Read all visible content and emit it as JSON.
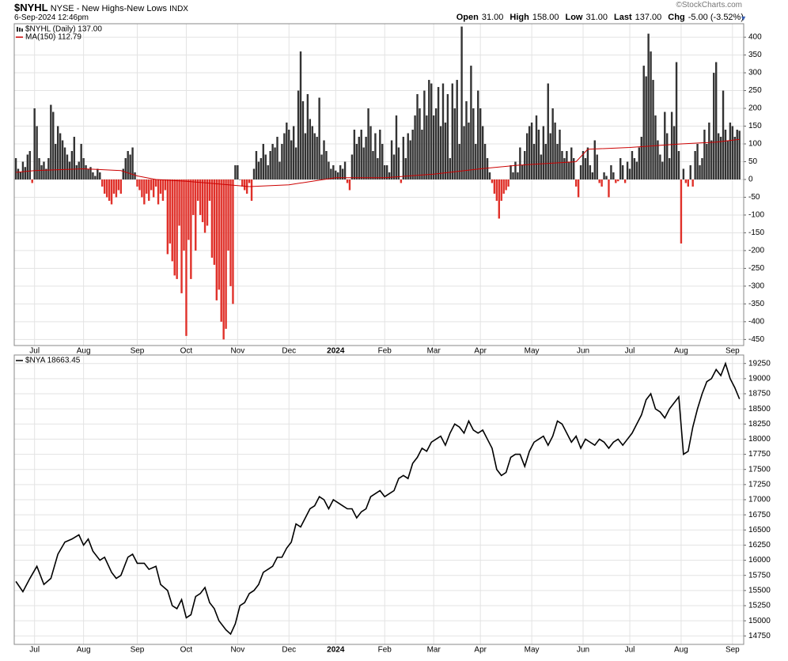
{
  "header": {
    "symbol": "$NYHL",
    "name": "NYSE - New Highs-New Lows",
    "exchange": "INDX",
    "date": "6-Sep-2024 12:46pm",
    "watermark": "©StockCharts.com",
    "quote": [
      {
        "label": "Open",
        "value": "31.00"
      },
      {
        "label": "High",
        "value": "158.00"
      },
      {
        "label": "Low",
        "value": "31.00"
      },
      {
        "label": "Last",
        "value": "137.00"
      },
      {
        "label": "Chg",
        "value": "-5.00 (-3.52%)"
      }
    ]
  },
  "chart_data": [
    {
      "type": "bar",
      "grid": true,
      "xlim": [
        -0.7,
        311.8
      ],
      "ylim": [
        -467,
        438
      ],
      "yticks": [
        400,
        350,
        300,
        250,
        200,
        150,
        100,
        50,
        0,
        -50,
        -100,
        -150,
        -200,
        -250,
        -300,
        -350,
        -400,
        -450
      ],
      "xticks": [
        {
          "value": 8,
          "label": "Jul"
        },
        {
          "value": 29,
          "label": "Aug"
        },
        {
          "value": 52,
          "label": "Sep"
        },
        {
          "value": 73,
          "label": "Oct"
        },
        {
          "value": 95,
          "label": "Nov"
        },
        {
          "value": 117,
          "label": "Dec"
        },
        {
          "value": 137,
          "label": "2024"
        },
        {
          "value": 158,
          "label": "Feb"
        },
        {
          "value": 179,
          "label": "Mar"
        },
        {
          "value": 199,
          "label": "Apr"
        },
        {
          "value": 221,
          "label": "May"
        },
        {
          "value": 243,
          "label": "Jun"
        },
        {
          "value": 263,
          "label": "Jul"
        },
        {
          "value": 285,
          "label": "Aug"
        },
        {
          "value": 307,
          "label": "Sep"
        }
      ],
      "series": [
        {
          "name": "$NYHL (Daily) 137.00",
          "type": "bar",
          "color": "#333333",
          "negative_color": "#e0312a",
          "values": [
            60,
            30,
            20,
            50,
            35,
            70,
            80,
            -10,
            200,
            150,
            60,
            40,
            50,
            30,
            60,
            210,
            190,
            100,
            150,
            130,
            110,
            90,
            70,
            50,
            80,
            120,
            40,
            50,
            100,
            60,
            40,
            30,
            35,
            20,
            10,
            30,
            20,
            -20,
            -40,
            -50,
            -60,
            -70,
            -40,
            -50,
            -30,
            -40,
            30,
            60,
            80,
            70,
            90,
            20,
            -20,
            -30,
            -50,
            -70,
            -40,
            -60,
            -30,
            -50,
            -20,
            -70,
            -40,
            -60,
            -30,
            -210,
            -180,
            -230,
            -270,
            -280,
            -130,
            -320,
            -200,
            -440,
            -170,
            -280,
            -100,
            -200,
            -60,
            -100,
            -120,
            -150,
            -130,
            -60,
            -220,
            -240,
            -340,
            -310,
            -400,
            -450,
            -420,
            -200,
            -300,
            -350,
            40,
            40,
            0,
            -20,
            -30,
            -40,
            -10,
            -60,
            30,
            80,
            50,
            60,
            100,
            70,
            40,
            80,
            100,
            90,
            120,
            50,
            100,
            130,
            160,
            140,
            110,
            150,
            90,
            250,
            360,
            220,
            130,
            240,
            170,
            150,
            130,
            120,
            230,
            70,
            110,
            80,
            50,
            30,
            40,
            25,
            20,
            40,
            30,
            50,
            -10,
            -30,
            70,
            140,
            100,
            120,
            140,
            90,
            120,
            200,
            150,
            80,
            130,
            60,
            140,
            100,
            40,
            40,
            20,
            110,
            70,
            180,
            90,
            -10,
            120,
            60,
            130,
            110,
            140,
            180,
            240,
            200,
            140,
            250,
            180,
            280,
            270,
            180,
            200,
            260,
            150,
            270,
            160,
            240,
            60,
            270,
            200,
            280,
            100,
            430,
            150,
            220,
            160,
            320,
            200,
            100,
            250,
            200,
            150,
            100,
            60,
            20,
            -10,
            -40,
            -60,
            -110,
            -60,
            -40,
            -30,
            -20,
            40,
            20,
            50,
            20,
            90,
            40,
            80,
            130,
            150,
            160,
            100,
            180,
            140,
            70,
            150,
            100,
            270,
            130,
            200,
            160,
            100,
            140,
            80,
            60,
            80,
            50,
            90,
            60,
            -20,
            -50,
            40,
            80,
            60,
            90,
            40,
            20,
            110,
            70,
            -10,
            -20,
            20,
            10,
            -50,
            40,
            20,
            -10,
            -5,
            60,
            40,
            -10,
            50,
            30,
            80,
            60,
            50,
            90,
            120,
            320,
            290,
            410,
            360,
            280,
            180,
            110,
            70,
            50,
            190,
            130,
            60,
            190,
            150,
            330,
            80,
            -180,
            30,
            -10,
            -20,
            40,
            -20,
            80,
            100,
            40,
            60,
            140,
            100,
            160,
            110,
            300,
            330,
            130,
            120,
            250,
            140,
            110,
            160,
            150,
            120,
            140,
            137
          ]
        },
        {
          "name": "MA(150) 112.79",
          "type": "line",
          "color": "#cc0000",
          "x": [
            0,
            8,
            29,
            45,
            52,
            60,
            73,
            100,
            117,
            130,
            137,
            158,
            179,
            199,
            215,
            240,
            245,
            263,
            285,
            300,
            310
          ],
          "values": [
            20,
            25,
            30,
            25,
            10,
            0,
            -5,
            -20,
            -15,
            -2,
            5,
            5,
            15,
            30,
            40,
            50,
            85,
            90,
            100,
            105,
            112.79
          ]
        }
      ]
    },
    {
      "type": "line",
      "grid": true,
      "xlim": [
        -0.7,
        311.8
      ],
      "ylim": [
        14610,
        19390
      ],
      "yticks": [
        19250,
        19000,
        18750,
        18500,
        18250,
        18000,
        17750,
        17500,
        17250,
        17000,
        16750,
        16500,
        16250,
        16000,
        15750,
        15500,
        15250,
        15000,
        14750
      ],
      "xticks": [
        {
          "value": 8,
          "label": "Jul"
        },
        {
          "value": 29,
          "label": "Aug"
        },
        {
          "value": 52,
          "label": "Sep"
        },
        {
          "value": 73,
          "label": "Oct"
        },
        {
          "value": 95,
          "label": "Nov"
        },
        {
          "value": 117,
          "label": "Dec"
        },
        {
          "value": 137,
          "label": "2024"
        },
        {
          "value": 158,
          "label": "Feb"
        },
        {
          "value": 179,
          "label": "Mar"
        },
        {
          "value": 199,
          "label": "Apr"
        },
        {
          "value": 221,
          "label": "May"
        },
        {
          "value": 243,
          "label": "Jun"
        },
        {
          "value": 263,
          "label": "Jul"
        },
        {
          "value": 285,
          "label": "Aug"
        },
        {
          "value": 307,
          "label": "Sep"
        }
      ],
      "series": [
        {
          "name": "$NYA 18663.45",
          "type": "line",
          "color": "#000000",
          "x": [
            0,
            3,
            6,
            9,
            12,
            15,
            18,
            21,
            24,
            27,
            29,
            31,
            33,
            36,
            38,
            41,
            43,
            45,
            48,
            50,
            52,
            55,
            57,
            60,
            62,
            65,
            67,
            69,
            71,
            73,
            75,
            77,
            79,
            81,
            83,
            85,
            87,
            90,
            92,
            94,
            96,
            98,
            100,
            102,
            104,
            106,
            108,
            110,
            112,
            114,
            116,
            118,
            120,
            122,
            124,
            126,
            128,
            130,
            132,
            134,
            136,
            138,
            140,
            142,
            144,
            146,
            148,
            150,
            152,
            154,
            156,
            158,
            160,
            162,
            164,
            166,
            168,
            170,
            172,
            174,
            176,
            178,
            180,
            182,
            184,
            186,
            188,
            190,
            192,
            194,
            196,
            198,
            200,
            202,
            204,
            206,
            208,
            210,
            212,
            214,
            216,
            218,
            220,
            222,
            224,
            226,
            228,
            230,
            232,
            234,
            236,
            238,
            240,
            242,
            244,
            246,
            248,
            250,
            252,
            254,
            256,
            258,
            260,
            262,
            264,
            266,
            268,
            270,
            272,
            274,
            276,
            278,
            280,
            282,
            284,
            286,
            288,
            290,
            292,
            294,
            296,
            298,
            300,
            302,
            304,
            306,
            308,
            310
          ],
          "values": [
            15650,
            15480,
            15700,
            15900,
            15600,
            15700,
            16100,
            16300,
            16350,
            16420,
            16250,
            16350,
            16150,
            16000,
            16050,
            15800,
            15700,
            15750,
            16050,
            16100,
            15950,
            15950,
            15850,
            15900,
            15600,
            15500,
            15250,
            15200,
            15350,
            15050,
            15100,
            15400,
            15450,
            15550,
            15300,
            15200,
            15000,
            14850,
            14780,
            14950,
            15250,
            15300,
            15450,
            15500,
            15600,
            15800,
            15850,
            15900,
            16050,
            16050,
            16200,
            16300,
            16600,
            16550,
            16700,
            16850,
            16900,
            17050,
            17000,
            16850,
            17000,
            16950,
            16900,
            16850,
            16850,
            16700,
            16800,
            16850,
            17050,
            17100,
            17150,
            17050,
            17100,
            17150,
            17350,
            17400,
            17350,
            17600,
            17700,
            17850,
            17800,
            17950,
            18000,
            18050,
            17900,
            18100,
            18250,
            18200,
            18100,
            18300,
            18150,
            18100,
            18150,
            18000,
            17850,
            17500,
            17400,
            17450,
            17700,
            17750,
            17750,
            17550,
            17800,
            17950,
            18000,
            18050,
            17900,
            18050,
            18300,
            18250,
            18100,
            17950,
            18050,
            17850,
            18000,
            17950,
            17900,
            18000,
            17950,
            17850,
            17950,
            18000,
            17900,
            18000,
            18100,
            18250,
            18400,
            18650,
            18750,
            18500,
            18450,
            18350,
            18500,
            18600,
            18700,
            17750,
            17800,
            18200,
            18500,
            18750,
            18950,
            19000,
            19150,
            19050,
            19250,
            19000,
            18850,
            18663.45
          ]
        }
      ]
    }
  ]
}
